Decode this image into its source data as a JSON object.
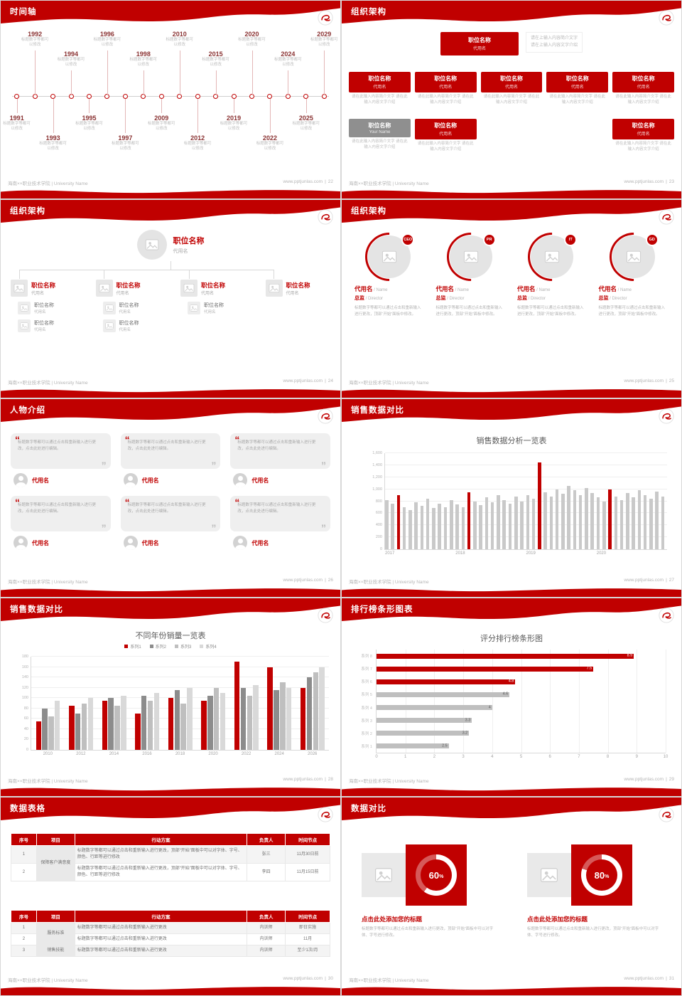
{
  "theme": {
    "red": "#c00000",
    "bar_gray": "#c9c9c9",
    "light_gray": "#bfbfbf"
  },
  "footer": {
    "left": "海南××职业技术学院 | University Name",
    "site": "www.pptjunlas.com",
    "divider": "|"
  },
  "icons": {
    "logo": "swirl-logo",
    "image_placeholder": "picture",
    "avatar": "person",
    "quote_open": "“",
    "quote_close": "”"
  },
  "slides": {
    "s22": {
      "title": "时间轴",
      "page": "22",
      "caption": "标题数字等都可以修改",
      "points": [
        {
          "year": "1991",
          "pos": "b1"
        },
        {
          "year": "1992",
          "pos": "t1"
        },
        {
          "year": "1993",
          "pos": "b2"
        },
        {
          "year": "1994",
          "pos": "t2"
        },
        {
          "year": "1995",
          "pos": "b1"
        },
        {
          "year": "1996",
          "pos": "t1"
        },
        {
          "year": "1997",
          "pos": "b2"
        },
        {
          "year": "1998",
          "pos": "t2"
        },
        {
          "year": "2009",
          "pos": "b1"
        },
        {
          "year": "2010",
          "pos": "t1"
        },
        {
          "year": "2012",
          "pos": "b2"
        },
        {
          "year": "2015",
          "pos": "t2"
        },
        {
          "year": "2019",
          "pos": "b1"
        },
        {
          "year": "2020",
          "pos": "t1"
        },
        {
          "year": "2022",
          "pos": "b2"
        },
        {
          "year": "2024",
          "pos": "t2"
        },
        {
          "year": "2025",
          "pos": "b1"
        },
        {
          "year": "2029",
          "pos": "t1"
        }
      ]
    },
    "s23": {
      "title": "组织架构",
      "page": "23",
      "root": {
        "name": "职位名称",
        "alias": "代用名"
      },
      "root_note": "请在上输入内容简介文字\n请在上输入内容文字介绍",
      "box_note": "请在此输入内容简介文字 请在此输入内容文字介绍",
      "level2": [
        {
          "name": "职位名称",
          "alias": "代用名"
        },
        {
          "name": "职位名称",
          "alias": "代用名"
        },
        {
          "name": "职位名称",
          "alias": "代用名"
        },
        {
          "name": "职位名称",
          "alias": "代用名"
        },
        {
          "name": "职位名称",
          "alias": "代用名"
        }
      ],
      "level3": [
        {
          "name": "职位名称",
          "alias": "Your Name",
          "gray": true,
          "col": 0
        },
        {
          "name": "职位名称",
          "alias": "代用名",
          "col": 1
        },
        {
          "name": "职位名称",
          "alias": "代用名",
          "col": 4
        }
      ]
    },
    "s24": {
      "title": "组织架构",
      "page": "24",
      "root": {
        "name": "职位名称",
        "alias": "代用名"
      },
      "children": [
        {
          "name": "职位名称",
          "alias": "代用名",
          "subs": 2
        },
        {
          "name": "职位名称",
          "alias": "代用名",
          "subs": 2
        },
        {
          "name": "职位名称",
          "alias": "代用名",
          "subs": 1
        },
        {
          "name": "职位名称",
          "alias": "代用名",
          "subs": 0
        }
      ],
      "sub": {
        "name": "职位名称",
        "alias": "代用名"
      }
    },
    "s25": {
      "title": "组织架构",
      "page": "25",
      "members": [
        {
          "badge": "CEO",
          "name": "代用名",
          "name_en": "/ Name",
          "role": "总监",
          "role_en": "/ Director",
          "desc": "标题数字等都可以通过点击和重新输入进行更改，顶部“开始”面板中修改。"
        },
        {
          "badge": "PR",
          "name": "代用名",
          "name_en": "/ Name",
          "role": "总监",
          "role_en": "/ Director",
          "desc": "标题数字等都可以通过点击和重新输入进行更改，顶部“开始”面板中修改。"
        },
        {
          "badge": "IT",
          "name": "代用名",
          "name_en": "/ Name",
          "role": "总监",
          "role_en": "/ Director",
          "desc": "标题数字等都可以通过点击和重新输入进行更改，顶部“开始”面板中修改。"
        },
        {
          "badge": "GD",
          "name": "代用名",
          "name_en": "/ Name",
          "role": "总监",
          "role_en": "/ Director",
          "desc": "标题数字等都可以通过点击和重新输入进行更改，顶部“开始”面板中修改。"
        }
      ]
    },
    "s26": {
      "title": "人物介绍",
      "page": "26",
      "quote_text": "标题数字等都可以通过点击和重新输入进行更改，点击此处进行编辑。",
      "cards": [
        {
          "name": "代用名"
        },
        {
          "name": "代用名"
        },
        {
          "name": "代用名"
        },
        {
          "name": "代用名"
        },
        {
          "name": "代用名"
        },
        {
          "name": "代用名"
        }
      ]
    },
    "s27": {
      "title": "销售数据对比",
      "page": "27"
    },
    "s28": {
      "title": "销售数据对比",
      "page": "28"
    },
    "s29": {
      "title": "排行榜条形图表",
      "page": "29"
    },
    "s30": {
      "title": "数据表格",
      "page": "30",
      "tables": [
        {
          "headers": [
            "序号",
            "项目",
            "行动方案",
            "负责人",
            "时间节点"
          ],
          "rows": [
            [
              {
                "t": "1"
              },
              {
                "t": "保障客户满意度",
                "rs": 2,
                "cls": "item"
              },
              {
                "t": "标题数字等都可以通过点击和重新输入进行更改，顶部“开始”面板中可以对字体、字号、颜色、行距等进行修改",
                "cls": "plan"
              },
              {
                "t": "张三"
              },
              {
                "t": "11月30日前"
              }
            ],
            [
              {
                "t": "2"
              },
              {
                "t": "标题数字等都可以通过点击和重新输入进行更改，顶部“开始”面板中可以对字体、字号、颜色、行距等进行修改",
                "cls": "plan"
              },
              {
                "t": "李四"
              },
              {
                "t": "11月15日前"
              }
            ]
          ]
        },
        {
          "headers": [
            "序号",
            "项目",
            "行动方案",
            "负责人",
            "时间节点"
          ],
          "rows": [
            [
              {
                "t": "1"
              },
              {
                "t": "服务标准",
                "rs": 2,
                "cls": "item"
              },
              {
                "t": "标题数字等都可以通过点击和重新输入进行更改",
                "cls": "plan"
              },
              {
                "t": "内训师"
              },
              {
                "t": "即日实施"
              }
            ],
            [
              {
                "t": "2"
              },
              {
                "t": "标题数字等都可以通过点击和重新输入进行更改",
                "cls": "plan"
              },
              {
                "t": "内训师"
              },
              {
                "t": "11月"
              }
            ],
            [
              {
                "t": "3"
              },
              {
                "t": "销售技能",
                "cls": "item"
              },
              {
                "t": "标题数字等都可以通过点击和重新输入进行更改",
                "cls": "plan"
              },
              {
                "t": "内训师"
              },
              {
                "t": "至少1次/月"
              }
            ]
          ]
        }
      ]
    },
    "s31": {
      "title": "数据对比",
      "page": "31",
      "panels": [
        {
          "percent": 60,
          "value": "60",
          "unit": "%",
          "heading": "点击此处添加您的标题",
          "desc": "标题数字等都可以通过点击和重新输入进行更改，顶部“开始”面板中可以对字体、字号进行修改。"
        },
        {
          "percent": 80,
          "value": "80",
          "unit": "%",
          "heading": "点击此处添加您的标题",
          "desc": "标题数字等都可以通过点击和重新输入进行更改，顶部“开始”面板中可以对字体、字号进行修改。"
        }
      ]
    }
  },
  "chart_data": [
    {
      "slide": "27",
      "type": "bar",
      "title": "销售数据分析一览表",
      "x_ticks": [
        "2017",
        "2018",
        "2019",
        "2020"
      ],
      "ylim": [
        0,
        1600
      ],
      "y_ticks": [
        0,
        200,
        400,
        600,
        800,
        1000,
        1200,
        1400,
        1600
      ],
      "y_tick_labels": [
        "0",
        "200",
        "400",
        "600",
        "800",
        "1,000",
        "1,200",
        "1,400",
        "1,600"
      ],
      "values": [
        820,
        760,
        900,
        700,
        650,
        780,
        720,
        840,
        690,
        760,
        700,
        820,
        750,
        700,
        950,
        800,
        740,
        860,
        780,
        900,
        820,
        760,
        880,
        800,
        900,
        840,
        1450,
        950,
        880,
        1000,
        920,
        1050,
        980,
        900,
        1020,
        940,
        860,
        800,
        1000,
        880,
        820,
        940,
        860,
        980,
        900,
        840,
        960,
        880
      ],
      "highlight_indexes": [
        2,
        14,
        26,
        38
      ],
      "bar_color": "#c9c9c9",
      "highlight_color": "#c00000",
      "legend_position": "none",
      "grid": true
    },
    {
      "slide": "28",
      "type": "bar",
      "title": "不同年份销量一览表",
      "legend": [
        "系列1",
        "系列2",
        "系列3",
        "系列4"
      ],
      "series_colors": [
        "#c00000",
        "#8c8c8c",
        "#bfbfbf",
        "#d9d9d9"
      ],
      "categories": [
        "2010",
        "2012",
        "2014",
        "2016",
        "2018",
        "2020",
        "2022",
        "2024",
        "2026"
      ],
      "ylim": [
        0,
        180
      ],
      "y_ticks": [
        0,
        20,
        40,
        60,
        80,
        100,
        120,
        140,
        160,
        180
      ],
      "series": [
        {
          "name": "系列1",
          "values": [
            55,
            85,
            95,
            70,
            100,
            95,
            170,
            160,
            120
          ]
        },
        {
          "name": "系列2",
          "values": [
            80,
            70,
            100,
            105,
            115,
            105,
            120,
            115,
            140
          ]
        },
        {
          "name": "系列3",
          "values": [
            65,
            90,
            85,
            95,
            90,
            120,
            105,
            130,
            150
          ]
        },
        {
          "name": "系列4",
          "values": [
            95,
            100,
            105,
            110,
            120,
            110,
            125,
            120,
            160
          ]
        }
      ],
      "legend_position": "top",
      "grid": true
    },
    {
      "slide": "29",
      "type": "bar",
      "orientation": "horizontal",
      "title": "评分排行榜条形图",
      "categories": [
        "系列 8",
        "系列 7",
        "系列 6",
        "系列 5",
        "系列 4",
        "系列 3",
        "系列 2",
        "系列 1"
      ],
      "values": [
        8.9,
        7.5,
        4.8,
        4.6,
        4,
        3.3,
        3.2,
        2.5
      ],
      "colors": [
        "#c00000",
        "#c00000",
        "#c00000",
        "#bfbfbf",
        "#bfbfbf",
        "#bfbfbf",
        "#bfbfbf",
        "#bfbfbf"
      ],
      "xlim": [
        0,
        10
      ],
      "x_ticks": [
        0,
        1,
        2,
        3,
        4,
        5,
        6,
        7,
        8,
        9,
        10
      ],
      "legend_position": "none",
      "grid": true
    }
  ]
}
